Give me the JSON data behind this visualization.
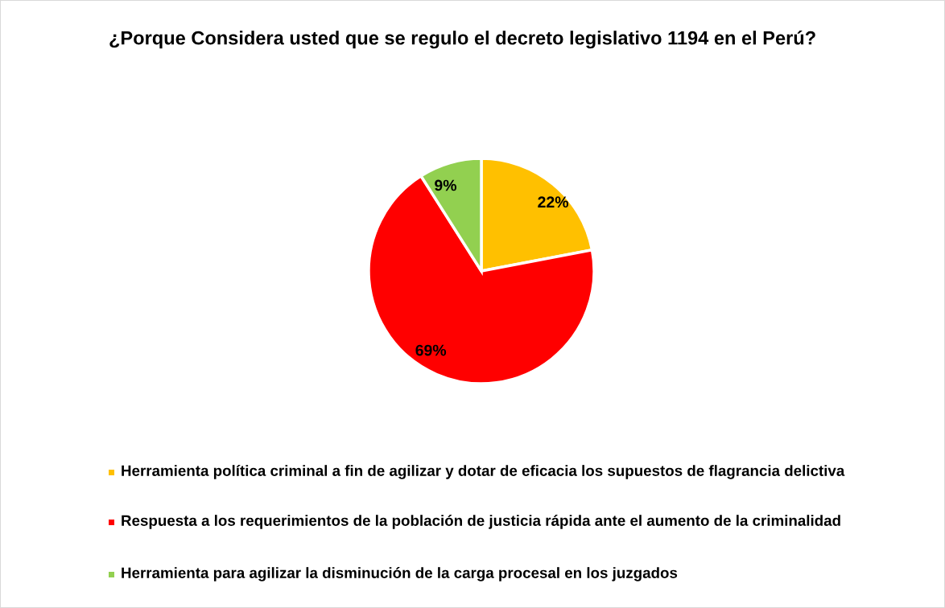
{
  "chart_data": {
    "type": "pie",
    "title": "¿Porque Considera usted que se regulo el decreto legislativo 1194 en el Perú?",
    "categories": [
      "Herramienta política criminal a fin de agilizar y dotar de eficacia los supuestos de flagrancia delictiva",
      "Respuesta a los requerimientos de la población de justicia rápida ante el aumento de la criminalidad",
      "Herramienta para agilizar la disminución de la carga procesal en los juzgados"
    ],
    "values": [
      22,
      69,
      9
    ],
    "value_labels": [
      "22%",
      "69%",
      "9%"
    ],
    "colors": [
      "#ffc000",
      "#ff0000",
      "#92d050"
    ],
    "legend": "bottom"
  }
}
